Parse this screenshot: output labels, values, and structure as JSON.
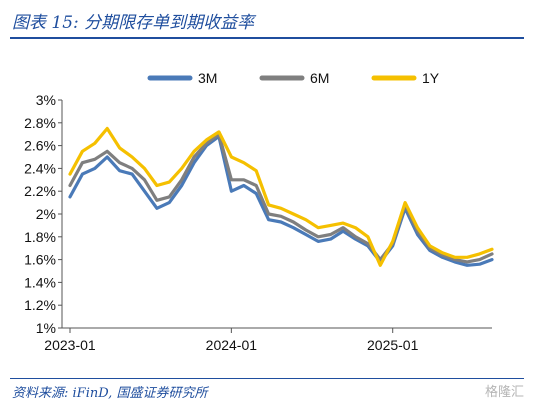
{
  "title": "图表 15:  分期限存单到期收益率",
  "source": "资料来源:  iFinD,  国盛证券研究所",
  "watermark": "格隆汇",
  "chart_data": {
    "type": "line",
    "y_unit": "%",
    "ylim": [
      1.0,
      3.0
    ],
    "yticks": [
      "3%",
      "2.8%",
      "2.6%",
      "2.4%",
      "2.2%",
      "2%",
      "1.8%",
      "1.6%",
      "1.4%",
      "1.2%",
      "1%"
    ],
    "xticks": [
      "2023-01",
      "2024-01",
      "2025-01"
    ],
    "x": [
      "2023-01",
      "2023-02",
      "2023-03",
      "2023-04",
      "2023-05",
      "2023-06",
      "2023-07",
      "2023-08",
      "2023-09",
      "2023-10",
      "2023-11",
      "2023-12",
      "2023-12-20",
      "2024-01",
      "2024-02",
      "2024-03",
      "2024-04",
      "2024-05",
      "2024-06",
      "2024-07",
      "2024-08",
      "2024-09",
      "2024-10",
      "2024-11",
      "2024-12",
      "2024-12-20",
      "2025-01",
      "2025-02",
      "2025-03",
      "2025-04",
      "2025-05",
      "2025-06",
      "2025-07",
      "2025-08",
      "2025-09"
    ],
    "legend_position": "top",
    "series": [
      {
        "name": "3M",
        "color": "#4a7ab8",
        "values": [
          2.15,
          2.35,
          2.4,
          2.5,
          2.38,
          2.35,
          2.2,
          2.05,
          2.1,
          2.25,
          2.45,
          2.6,
          2.68,
          2.2,
          2.25,
          2.18,
          1.95,
          1.93,
          1.88,
          1.82,
          1.76,
          1.78,
          1.85,
          1.78,
          1.72,
          1.58,
          1.72,
          2.05,
          1.82,
          1.68,
          1.62,
          1.58,
          1.55,
          1.56,
          1.6
        ]
      },
      {
        "name": "6M",
        "color": "#7f7f7f",
        "values": [
          2.25,
          2.45,
          2.48,
          2.55,
          2.45,
          2.4,
          2.3,
          2.12,
          2.15,
          2.3,
          2.5,
          2.62,
          2.7,
          2.3,
          2.3,
          2.25,
          2.0,
          1.98,
          1.93,
          1.86,
          1.8,
          1.82,
          1.88,
          1.8,
          1.74,
          1.6,
          1.74,
          2.08,
          1.85,
          1.7,
          1.64,
          1.6,
          1.58,
          1.6,
          1.65
        ]
      },
      {
        "name": "1Y",
        "color": "#f5c000",
        "values": [
          2.35,
          2.55,
          2.62,
          2.75,
          2.58,
          2.5,
          2.4,
          2.25,
          2.28,
          2.4,
          2.55,
          2.65,
          2.72,
          2.5,
          2.45,
          2.38,
          2.08,
          2.05,
          2.0,
          1.95,
          1.88,
          1.9,
          1.92,
          1.88,
          1.8,
          1.55,
          1.76,
          2.1,
          1.88,
          1.72,
          1.66,
          1.62,
          1.62,
          1.65,
          1.69
        ]
      }
    ]
  }
}
